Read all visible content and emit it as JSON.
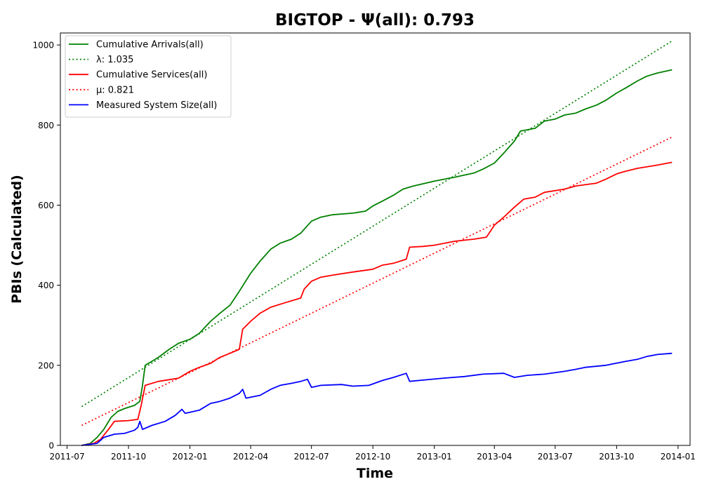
{
  "chart_data": {
    "type": "line",
    "title": "BIGTOP -  Ψ(all): 0.793",
    "xlabel": "Time",
    "ylabel": "PBIs (Calculated)",
    "xlim": [
      "2011-06-21",
      "2014-01-19"
    ],
    "ylim": [
      0,
      1030
    ],
    "x_ticks": [
      "2011-07",
      "2011-10",
      "2012-01",
      "2012-04",
      "2012-07",
      "2012-10",
      "2013-01",
      "2013-04",
      "2013-07",
      "2013-10",
      "2014-01"
    ],
    "y_ticks": [
      0,
      200,
      400,
      600,
      800,
      1000
    ],
    "grid": false,
    "legend_position": "upper-left",
    "series": [
      {
        "name": "Cumulative Arrivals(all)",
        "color": "#008000",
        "style": "solid",
        "points": [
          [
            "2011-07-23",
            0
          ],
          [
            "2011-08-05",
            5
          ],
          [
            "2011-08-15",
            20
          ],
          [
            "2011-08-25",
            40
          ],
          [
            "2011-09-05",
            70
          ],
          [
            "2011-09-15",
            85
          ],
          [
            "2011-09-25",
            92
          ],
          [
            "2011-10-10",
            100
          ],
          [
            "2011-10-18",
            110
          ],
          [
            "2011-10-22",
            150
          ],
          [
            "2011-10-26",
            200
          ],
          [
            "2011-11-05",
            210
          ],
          [
            "2011-11-15",
            220
          ],
          [
            "2011-12-01",
            240
          ],
          [
            "2011-12-15",
            255
          ],
          [
            "2012-01-01",
            265
          ],
          [
            "2012-01-15",
            280
          ],
          [
            "2012-02-01",
            310
          ],
          [
            "2012-02-15",
            330
          ],
          [
            "2012-03-01",
            350
          ],
          [
            "2012-03-15",
            385
          ],
          [
            "2012-04-01",
            430
          ],
          [
            "2012-04-15",
            460
          ],
          [
            "2012-05-01",
            490
          ],
          [
            "2012-05-15",
            505
          ],
          [
            "2012-06-01",
            515
          ],
          [
            "2012-06-15",
            530
          ],
          [
            "2012-07-01",
            560
          ],
          [
            "2012-07-15",
            570
          ],
          [
            "2012-08-01",
            576
          ],
          [
            "2012-09-01",
            580
          ],
          [
            "2012-09-20",
            585
          ],
          [
            "2012-10-01",
            598
          ],
          [
            "2012-10-15",
            610
          ],
          [
            "2012-11-01",
            625
          ],
          [
            "2012-11-15",
            640
          ],
          [
            "2012-12-01",
            648
          ],
          [
            "2013-01-01",
            660
          ],
          [
            "2013-02-01",
            670
          ],
          [
            "2013-03-01",
            680
          ],
          [
            "2013-03-15",
            690
          ],
          [
            "2013-04-01",
            705
          ],
          [
            "2013-04-15",
            730
          ],
          [
            "2013-05-01",
            760
          ],
          [
            "2013-05-10",
            785
          ],
          [
            "2013-06-01",
            792
          ],
          [
            "2013-06-15",
            810
          ],
          [
            "2013-07-01",
            815
          ],
          [
            "2013-07-15",
            825
          ],
          [
            "2013-08-01",
            830
          ],
          [
            "2013-08-15",
            840
          ],
          [
            "2013-09-01",
            850
          ],
          [
            "2013-09-15",
            862
          ],
          [
            "2013-10-01",
            880
          ],
          [
            "2013-10-15",
            893
          ],
          [
            "2013-11-01",
            910
          ],
          [
            "2013-11-15",
            922
          ],
          [
            "2013-12-01",
            930
          ],
          [
            "2013-12-23",
            938
          ]
        ]
      },
      {
        "name": "λ: 1.035",
        "color": "#008000",
        "style": "dotted",
        "points": [
          [
            "2011-07-23",
            97
          ],
          [
            "2013-12-23",
            1010
          ]
        ]
      },
      {
        "name": "Cumulative Services(all)",
        "color": "#ff0000",
        "style": "solid",
        "points": [
          [
            "2011-07-23",
            0
          ],
          [
            "2011-08-10",
            5
          ],
          [
            "2011-08-20",
            15
          ],
          [
            "2011-09-01",
            40
          ],
          [
            "2011-09-10",
            60
          ],
          [
            "2011-10-01",
            62
          ],
          [
            "2011-10-15",
            65
          ],
          [
            "2011-10-20",
            100
          ],
          [
            "2011-10-26",
            150
          ],
          [
            "2011-11-15",
            160
          ],
          [
            "2011-12-15",
            168
          ],
          [
            "2012-01-01",
            185
          ],
          [
            "2012-01-15",
            195
          ],
          [
            "2012-02-01",
            205
          ],
          [
            "2012-02-15",
            220
          ],
          [
            "2012-03-01",
            230
          ],
          [
            "2012-03-15",
            240
          ],
          [
            "2012-03-20",
            290
          ],
          [
            "2012-04-01",
            310
          ],
          [
            "2012-04-15",
            330
          ],
          [
            "2012-05-01",
            345
          ],
          [
            "2012-05-20",
            355
          ],
          [
            "2012-06-15",
            368
          ],
          [
            "2012-06-20",
            390
          ],
          [
            "2012-07-01",
            410
          ],
          [
            "2012-07-15",
            420
          ],
          [
            "2012-08-01",
            425
          ],
          [
            "2012-09-01",
            433
          ],
          [
            "2012-10-01",
            440
          ],
          [
            "2012-10-15",
            450
          ],
          [
            "2012-11-01",
            455
          ],
          [
            "2012-11-20",
            465
          ],
          [
            "2012-11-25",
            495
          ],
          [
            "2012-12-15",
            497
          ],
          [
            "2013-01-01",
            500
          ],
          [
            "2013-02-01",
            510
          ],
          [
            "2013-03-01",
            515
          ],
          [
            "2013-03-20",
            520
          ],
          [
            "2013-04-01",
            550
          ],
          [
            "2013-04-15",
            570
          ],
          [
            "2013-05-01",
            595
          ],
          [
            "2013-05-15",
            615
          ],
          [
            "2013-06-01",
            620
          ],
          [
            "2013-06-15",
            632
          ],
          [
            "2013-07-15",
            640
          ],
          [
            "2013-08-01",
            648
          ],
          [
            "2013-09-01",
            655
          ],
          [
            "2013-09-15",
            665
          ],
          [
            "2013-10-01",
            678
          ],
          [
            "2013-10-15",
            685
          ],
          [
            "2013-11-01",
            692
          ],
          [
            "2013-12-01",
            700
          ],
          [
            "2013-12-23",
            707
          ]
        ]
      },
      {
        "name": "μ: 0.821",
        "color": "#ff0000",
        "style": "dotted",
        "points": [
          [
            "2011-07-23",
            50
          ],
          [
            "2013-12-23",
            770
          ]
        ]
      },
      {
        "name": "Measured System Size(all)",
        "color": "#0000ff",
        "style": "solid",
        "points": [
          [
            "2011-07-23",
            0
          ],
          [
            "2011-08-15",
            5
          ],
          [
            "2011-08-25",
            20
          ],
          [
            "2011-09-10",
            28
          ],
          [
            "2011-09-25",
            30
          ],
          [
            "2011-10-10",
            38
          ],
          [
            "2011-10-15",
            45
          ],
          [
            "2011-10-18",
            60
          ],
          [
            "2011-10-22",
            40
          ],
          [
            "2011-11-05",
            50
          ],
          [
            "2011-11-25",
            60
          ],
          [
            "2011-12-10",
            75
          ],
          [
            "2011-12-20",
            90
          ],
          [
            "2011-12-25",
            80
          ],
          [
            "2012-01-15",
            88
          ],
          [
            "2012-02-01",
            105
          ],
          [
            "2012-02-15",
            110
          ],
          [
            "2012-03-01",
            118
          ],
          [
            "2012-03-15",
            130
          ],
          [
            "2012-03-20",
            140
          ],
          [
            "2012-03-25",
            118
          ],
          [
            "2012-04-15",
            125
          ],
          [
            "2012-05-01",
            140
          ],
          [
            "2012-05-15",
            150
          ],
          [
            "2012-06-01",
            155
          ],
          [
            "2012-06-15",
            160
          ],
          [
            "2012-06-25",
            165
          ],
          [
            "2012-07-01",
            145
          ],
          [
            "2012-07-15",
            150
          ],
          [
            "2012-08-15",
            152
          ],
          [
            "2012-09-01",
            148
          ],
          [
            "2012-09-25",
            150
          ],
          [
            "2012-10-15",
            162
          ],
          [
            "2012-11-01",
            170
          ],
          [
            "2012-11-20",
            180
          ],
          [
            "2012-11-25",
            160
          ],
          [
            "2012-12-15",
            163
          ],
          [
            "2013-01-15",
            168
          ],
          [
            "2013-02-15",
            172
          ],
          [
            "2013-03-15",
            178
          ],
          [
            "2013-04-15",
            180
          ],
          [
            "2013-05-01",
            170
          ],
          [
            "2013-05-20",
            175
          ],
          [
            "2013-06-15",
            178
          ],
          [
            "2013-07-15",
            185
          ],
          [
            "2013-08-01",
            190
          ],
          [
            "2013-08-15",
            195
          ],
          [
            "2013-09-15",
            200
          ],
          [
            "2013-10-15",
            210
          ],
          [
            "2013-11-01",
            215
          ],
          [
            "2013-11-15",
            222
          ],
          [
            "2013-12-01",
            227
          ],
          [
            "2013-12-23",
            230
          ]
        ]
      }
    ]
  }
}
